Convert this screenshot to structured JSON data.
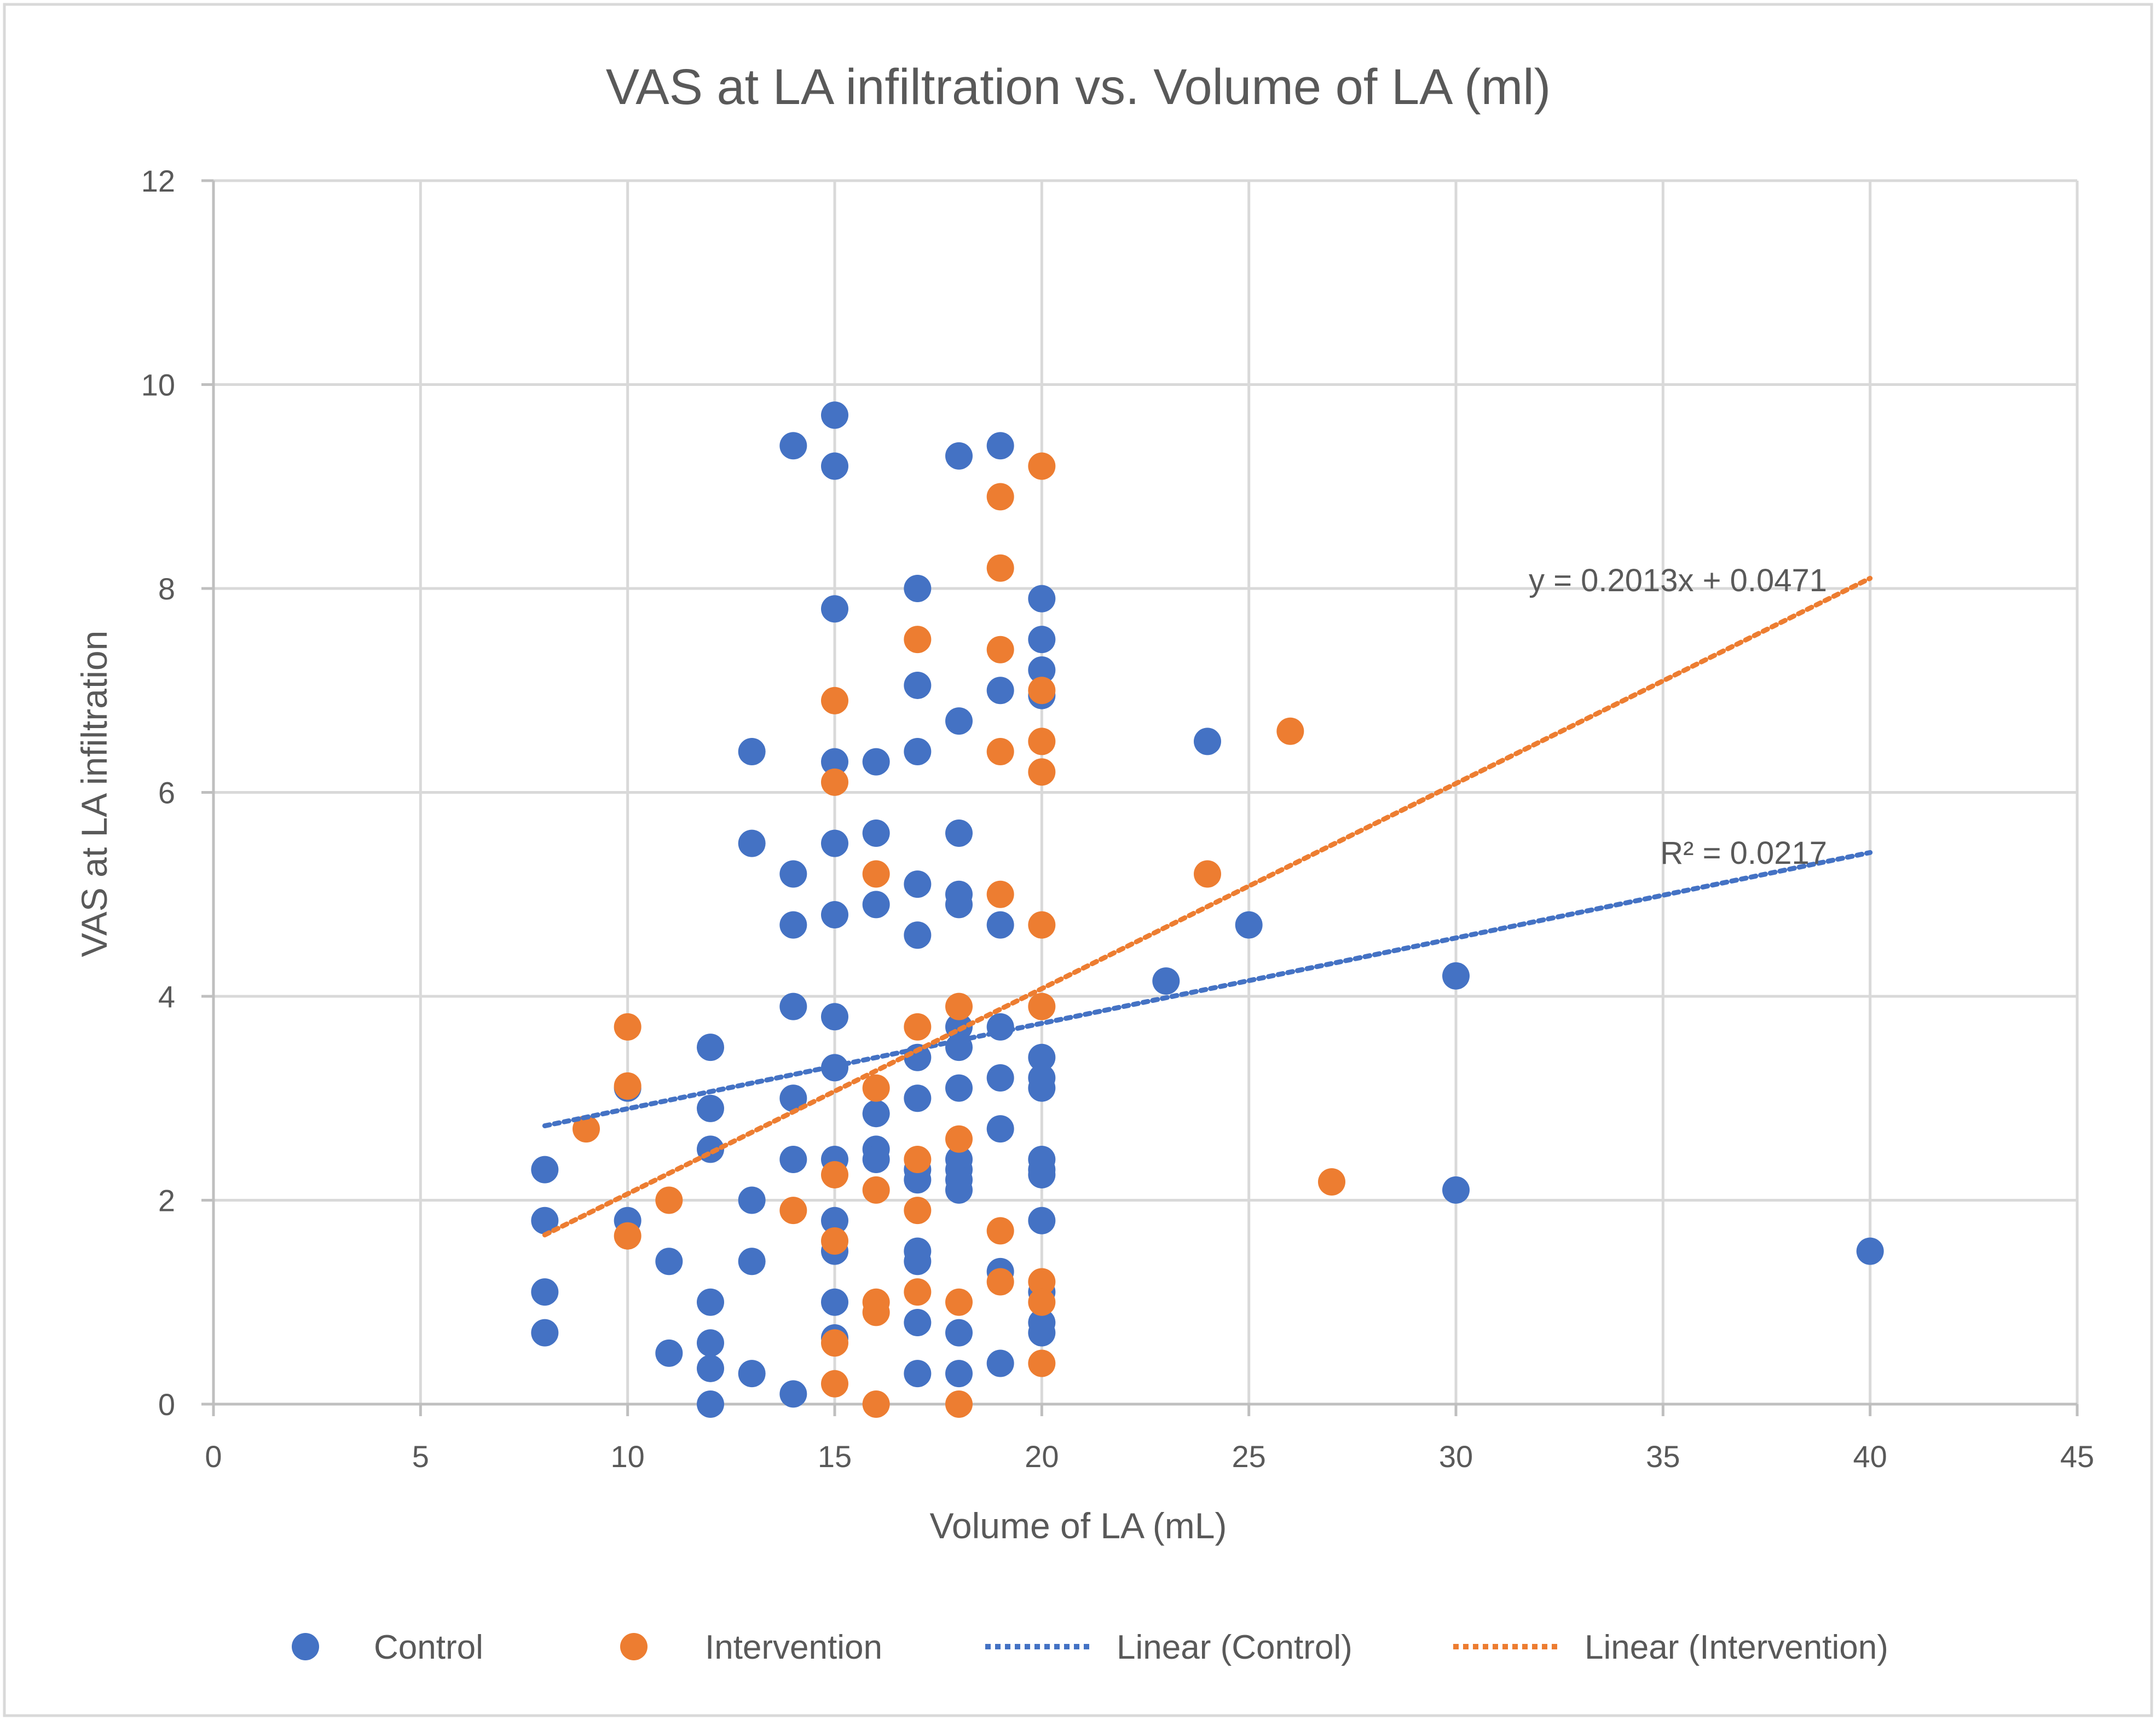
{
  "colors": {
    "control": "#4472C4",
    "intervention": "#ED7D31",
    "grid": "#D9D9D9",
    "axis": "#BFBFBF",
    "text": "#595959"
  },
  "chart_data": {
    "type": "scatter",
    "title": "VAS at LA infiltration vs. Volume of LA (ml)",
    "xlabel": "Volume of LA (mL)",
    "ylabel": "VAS at LA infiltration",
    "xlim": [
      0,
      45
    ],
    "ylim": [
      0,
      12
    ],
    "xticks": [
      "0",
      "5",
      "10",
      "15",
      "20",
      "25",
      "30",
      "35",
      "40",
      "45"
    ],
    "yticks": [
      "0",
      "2",
      "4",
      "6",
      "8",
      "10",
      "12"
    ],
    "grid": true,
    "legend_position": "bottom",
    "series": [
      {
        "name": "Control",
        "color": "#4472C4",
        "points": [
          [
            8,
            2.3
          ],
          [
            8,
            1.8
          ],
          [
            8,
            1.1
          ],
          [
            8,
            0.7
          ],
          [
            10,
            3.1
          ],
          [
            10,
            1.8
          ],
          [
            11,
            1.4
          ],
          [
            11,
            0.5
          ],
          [
            12,
            3.5
          ],
          [
            12,
            2.9
          ],
          [
            12,
            2.5
          ],
          [
            12,
            1.0
          ],
          [
            12,
            0.6
          ],
          [
            12,
            0.35
          ],
          [
            12,
            0.0
          ],
          [
            13,
            6.4
          ],
          [
            13,
            5.5
          ],
          [
            13,
            2.0
          ],
          [
            13,
            1.4
          ],
          [
            13,
            0.3
          ],
          [
            14,
            9.4
          ],
          [
            14,
            5.2
          ],
          [
            14,
            4.7
          ],
          [
            14,
            3.9
          ],
          [
            14,
            3.0
          ],
          [
            14,
            2.4
          ],
          [
            14,
            0.1
          ],
          [
            15,
            9.7
          ],
          [
            15,
            9.2
          ],
          [
            15,
            7.8
          ],
          [
            15,
            6.3
          ],
          [
            15,
            5.5
          ],
          [
            15,
            4.8
          ],
          [
            15,
            3.8
          ],
          [
            15,
            3.3
          ],
          [
            15,
            2.4
          ],
          [
            15,
            1.8
          ],
          [
            15,
            1.5
          ],
          [
            15,
            1.0
          ],
          [
            15,
            0.65
          ],
          [
            16,
            6.3
          ],
          [
            16,
            5.6
          ],
          [
            16,
            4.9
          ],
          [
            16,
            2.85
          ],
          [
            16,
            2.5
          ],
          [
            16,
            2.4
          ],
          [
            17,
            8.0
          ],
          [
            17,
            7.05
          ],
          [
            17,
            6.4
          ],
          [
            17,
            5.1
          ],
          [
            17,
            4.6
          ],
          [
            17,
            3.4
          ],
          [
            17,
            3.0
          ],
          [
            17,
            2.3
          ],
          [
            17,
            2.2
          ],
          [
            17,
            1.5
          ],
          [
            17,
            1.4
          ],
          [
            17,
            0.8
          ],
          [
            17,
            0.3
          ],
          [
            18,
            9.3
          ],
          [
            18,
            6.7
          ],
          [
            18,
            5.6
          ],
          [
            18,
            5.0
          ],
          [
            18,
            4.9
          ],
          [
            18,
            3.7
          ],
          [
            18,
            3.5
          ],
          [
            18,
            3.1
          ],
          [
            18,
            2.4
          ],
          [
            18,
            2.3
          ],
          [
            18,
            2.2
          ],
          [
            18,
            2.1
          ],
          [
            18,
            0.7
          ],
          [
            18,
            0.3
          ],
          [
            19,
            9.4
          ],
          [
            19,
            7.0
          ],
          [
            19,
            4.7
          ],
          [
            19,
            3.7
          ],
          [
            19,
            3.2
          ],
          [
            19,
            2.7
          ],
          [
            19,
            1.3
          ],
          [
            19,
            0.4
          ],
          [
            20,
            7.9
          ],
          [
            20,
            7.5
          ],
          [
            20,
            7.2
          ],
          [
            20,
            6.95
          ],
          [
            20,
            3.4
          ],
          [
            20,
            3.2
          ],
          [
            20,
            3.1
          ],
          [
            20,
            2.4
          ],
          [
            20,
            2.3
          ],
          [
            20,
            2.25
          ],
          [
            20,
            1.8
          ],
          [
            20,
            1.1
          ],
          [
            20,
            0.8
          ],
          [
            20,
            0.7
          ],
          [
            23,
            4.15
          ],
          [
            24,
            6.5
          ],
          [
            25,
            4.7
          ],
          [
            30,
            4.2
          ],
          [
            30,
            2.1
          ],
          [
            40,
            1.5
          ]
        ]
      },
      {
        "name": "Intervention",
        "color": "#ED7D31",
        "points": [
          [
            9,
            2.7
          ],
          [
            10,
            3.7
          ],
          [
            10,
            3.12
          ],
          [
            10,
            1.65
          ],
          [
            11,
            2.0
          ],
          [
            14,
            1.9
          ],
          [
            15,
            6.9
          ],
          [
            15,
            6.1
          ],
          [
            15,
            2.25
          ],
          [
            15,
            1.6
          ],
          [
            15,
            0.6
          ],
          [
            15,
            0.2
          ],
          [
            16,
            5.2
          ],
          [
            16,
            3.1
          ],
          [
            16,
            2.1
          ],
          [
            16,
            1.0
          ],
          [
            16,
            0.9
          ],
          [
            16,
            0.0
          ],
          [
            17,
            7.5
          ],
          [
            17,
            3.7
          ],
          [
            17,
            2.4
          ],
          [
            17,
            1.9
          ],
          [
            17,
            1.1
          ],
          [
            18,
            3.9
          ],
          [
            18,
            2.6
          ],
          [
            18,
            1.0
          ],
          [
            18,
            0.0
          ],
          [
            19,
            8.9
          ],
          [
            19,
            8.2
          ],
          [
            19,
            7.4
          ],
          [
            19,
            6.4
          ],
          [
            19,
            5.0
          ],
          [
            19,
            1.7
          ],
          [
            19,
            1.2
          ],
          [
            20,
            9.2
          ],
          [
            20,
            7.0
          ],
          [
            20,
            6.5
          ],
          [
            20,
            6.2
          ],
          [
            20,
            4.7
          ],
          [
            20,
            3.9
          ],
          [
            20,
            1.2
          ],
          [
            20,
            1.0
          ],
          [
            20,
            0.4
          ],
          [
            24,
            5.2
          ],
          [
            26,
            6.6
          ],
          [
            27,
            2.18
          ]
        ]
      }
    ],
    "trendlines": [
      {
        "name": "Linear (Control)",
        "series": "Control",
        "color": "#4472C4",
        "x": [
          8,
          40
        ],
        "y": [
          2.73,
          5.41
        ],
        "label": "R² = 0.0217"
      },
      {
        "name": "Linear (Intervention)",
        "series": "Intervention",
        "color": "#ED7D31",
        "x": [
          8,
          40
        ],
        "y": [
          1.66,
          8.1
        ],
        "label": "y = 0.2013x + 0.0471"
      }
    ],
    "legend": [
      "Control",
      "Intervention",
      "Linear (Control)",
      "Linear (Intervention)"
    ]
  }
}
